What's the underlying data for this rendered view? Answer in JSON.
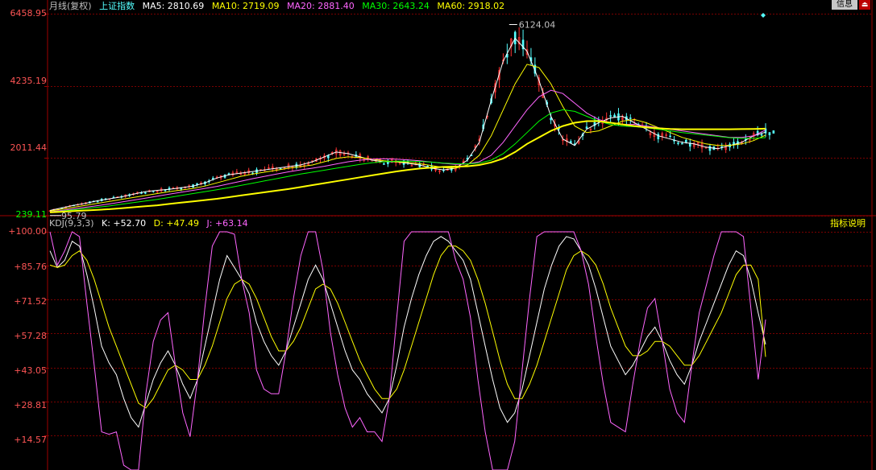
{
  "header": {
    "period_label": "月线(复权)",
    "index_name": "上证指数",
    "ma": [
      {
        "label": "MA5: 2810.69",
        "color": "#ffffff"
      },
      {
        "label": "MA10: 2719.09",
        "color": "#ffff00"
      },
      {
        "label": "MA20: 2881.40",
        "color": "#ff66ff"
      },
      {
        "label": "MA30: 2643.24",
        "color": "#00ff00"
      },
      {
        "label": "MA60: 2918.02",
        "color": "#ffff00"
      }
    ]
  },
  "buttons": {
    "info": "信息",
    "exit": "⏏",
    "indicator_help": "指标说明"
  },
  "price_panel": {
    "y_ticks": [
      "6458.95",
      "4235.19",
      "2011.44",
      "239.11"
    ],
    "high_label": "6124.04",
    "low_label": "95.79"
  },
  "kdj_panel": {
    "label": "KDJ(9,3,3)",
    "k_label": "K: +52.70",
    "d_label": "D: +47.49",
    "j_label": "J: +63.14",
    "y_ticks": [
      "+100.00",
      "+85.76",
      "+71.52",
      "+57.28",
      "+43.05",
      "+28.81",
      "+14.57"
    ]
  },
  "colors": {
    "grid": "#7a0000",
    "up": "#ff3333",
    "down": "#54ffff",
    "k_line": "#ffffff",
    "d_line": "#ffff00",
    "j_line": "#ff66ff",
    "ma_white": "#ffffff",
    "ma_yellow": "#ffff00",
    "ma_pink": "#ff66ff",
    "ma_green": "#00ff00"
  },
  "chart_data": [
    {
      "type": "line",
      "title": "上证指数 月线(复权)",
      "ylim": [
        239.11,
        6458.95
      ],
      "y_ticks": [
        239.11,
        2011.44,
        4235.19,
        6458.95
      ],
      "annotations": [
        {
          "label": "6124.04",
          "kind": "high"
        },
        {
          "label": "95.79",
          "kind": "low"
        }
      ],
      "series": [
        {
          "name": "MA5",
          "values": [
            400,
            480,
            560,
            620,
            700,
            760,
            820,
            900,
            980,
            1020,
            1050,
            1100,
            1150,
            1250,
            1400,
            1500,
            1550,
            1600,
            1650,
            1700,
            1750,
            1800,
            1900,
            2050,
            2200,
            2150,
            2050,
            1950,
            1900,
            1900,
            1850,
            1800,
            1700,
            1650,
            1700,
            1950,
            2500,
            3800,
            5000,
            5700,
            5300,
            4400,
            3300,
            2600,
            2400,
            2900,
            3100,
            3250,
            3300,
            3100,
            2900,
            2700,
            2600,
            2500,
            2450,
            2350,
            2300,
            2400,
            2500,
            2700,
            2810.69
          ]
        },
        {
          "name": "MA10",
          "values": [
            380,
            440,
            500,
            560,
            620,
            680,
            740,
            800,
            860,
            920,
            980,
            1030,
            1080,
            1150,
            1250,
            1350,
            1450,
            1520,
            1580,
            1640,
            1700,
            1750,
            1800,
            1900,
            2000,
            2050,
            2030,
            1980,
            1930,
            1900,
            1880,
            1840,
            1780,
            1720,
            1700,
            1800,
            2100,
            2700,
            3500,
            4300,
            4900,
            4800,
            4300,
            3600,
            3000,
            2800,
            2850,
            3000,
            3150,
            3200,
            3100,
            2950,
            2800,
            2650,
            2550,
            2450,
            2400,
            2400,
            2450,
            2550,
            2719.09
          ]
        },
        {
          "name": "MA20",
          "values": [
            360,
            400,
            450,
            500,
            550,
            600,
            660,
            720,
            780,
            840,
            900,
            960,
            1020,
            1080,
            1140,
            1220,
            1300,
            1380,
            1450,
            1520,
            1590,
            1650,
            1700,
            1760,
            1830,
            1900,
            1950,
            1980,
            1990,
            1980,
            1960,
            1930,
            1890,
            1850,
            1820,
            1830,
            1900,
            2100,
            2500,
            3000,
            3500,
            3900,
            4100,
            4000,
            3700,
            3400,
            3200,
            3100,
            3050,
            3050,
            3000,
            2950,
            2900,
            2850,
            2800,
            2750,
            2700,
            2650,
            2650,
            2700,
            2881.4
          ]
        },
        {
          "name": "MA30",
          "values": [
            350,
            380,
            420,
            460,
            500,
            540,
            590,
            640,
            690,
            740,
            800,
            860,
            920,
            980,
            1040,
            1100,
            1170,
            1240,
            1310,
            1380,
            1450,
            1520,
            1580,
            1640,
            1700,
            1760,
            1820,
            1870,
            1900,
            1920,
            1920,
            1910,
            1890,
            1860,
            1840,
            1830,
            1860,
            1950,
            2150,
            2450,
            2800,
            3150,
            3400,
            3500,
            3450,
            3300,
            3150,
            3050,
            3000,
            2980,
            2950,
            2900,
            2850,
            2800,
            2760,
            2720,
            2680,
            2640,
            2620,
            2620,
            2643.24
          ]
        },
        {
          "name": "MA60",
          "values": [
            340,
            360,
            380,
            400,
            420,
            440,
            470,
            500,
            530,
            560,
            600,
            640,
            680,
            720,
            760,
            810,
            860,
            910,
            960,
            1010,
            1060,
            1120,
            1180,
            1240,
            1300,
            1360,
            1420,
            1480,
            1540,
            1600,
            1650,
            1690,
            1720,
            1740,
            1750,
            1760,
            1800,
            1880,
            2000,
            2200,
            2450,
            2650,
            2850,
            3000,
            3100,
            3150,
            3150,
            3100,
            3050,
            3000,
            2960,
            2930,
            2910,
            2900,
            2900,
            2900,
            2900,
            2900,
            2905,
            2910,
            2918.02
          ]
        }
      ]
    },
    {
      "type": "line",
      "title": "KDJ(9,3,3)",
      "ylim": [
        0,
        100
      ],
      "y_ticks": [
        14.57,
        28.81,
        43.05,
        57.28,
        71.52,
        85.76,
        100.0
      ],
      "series": [
        {
          "name": "K",
          "values": [
            92,
            85,
            88,
            96,
            94,
            82,
            68,
            52,
            45,
            40,
            30,
            22,
            18,
            28,
            38,
            45,
            50,
            44,
            36,
            30,
            38,
            52,
            66,
            80,
            90,
            85,
            80,
            74,
            62,
            54,
            48,
            44,
            50,
            60,
            70,
            80,
            86,
            80,
            70,
            60,
            50,
            42,
            38,
            32,
            28,
            24,
            30,
            44,
            60,
            72,
            82,
            90,
            96,
            98,
            96,
            92,
            88,
            80,
            66,
            52,
            38,
            26,
            20,
            24,
            34,
            48,
            62,
            76,
            86,
            94,
            98,
            97,
            92,
            86,
            76,
            64,
            52,
            46,
            40,
            44,
            50,
            56,
            60,
            54,
            46,
            40,
            36,
            44,
            54,
            62,
            70,
            78,
            86,
            92,
            90,
            80,
            66,
            52.7
          ]
        },
        {
          "name": "D",
          "values": [
            86,
            85,
            86,
            90,
            92,
            88,
            80,
            70,
            60,
            52,
            44,
            36,
            28,
            26,
            30,
            36,
            42,
            44,
            42,
            38,
            38,
            44,
            52,
            62,
            72,
            78,
            80,
            78,
            72,
            64,
            56,
            50,
            50,
            54,
            60,
            68,
            76,
            78,
            76,
            70,
            62,
            54,
            46,
            40,
            34,
            30,
            30,
            34,
            42,
            52,
            62,
            72,
            82,
            90,
            94,
            94,
            92,
            88,
            80,
            70,
            58,
            46,
            36,
            30,
            30,
            36,
            44,
            54,
            64,
            74,
            84,
            90,
            92,
            90,
            86,
            78,
            68,
            60,
            52,
            48,
            48,
            50,
            54,
            54,
            52,
            48,
            44,
            44,
            48,
            54,
            60,
            66,
            74,
            82,
            86,
            86,
            80,
            47.49
          ]
        },
        {
          "name": "J",
          "values": [
            100,
            86,
            92,
            100,
            98,
            70,
            44,
            16,
            15,
            16,
            2,
            0,
            0,
            32,
            54,
            63,
            66,
            44,
            24,
            14,
            38,
            68,
            94,
            100,
            100,
            99,
            80,
            66,
            42,
            34,
            32,
            32,
            50,
            72,
            90,
            100,
            100,
            84,
            58,
            40,
            26,
            18,
            22,
            16,
            16,
            12,
            30,
            64,
            96,
            100,
            100,
            100,
            100,
            100,
            100,
            88,
            80,
            64,
            38,
            16,
            0,
            0,
            0,
            12,
            42,
            72,
            98,
            100,
            100,
            100,
            100,
            100,
            92,
            78,
            56,
            36,
            20,
            18,
            16,
            36,
            54,
            68,
            72,
            54,
            34,
            24,
            20,
            44,
            66,
            78,
            90,
            100,
            100,
            100,
            98,
            68,
            38,
            63.14
          ]
        }
      ]
    }
  ]
}
